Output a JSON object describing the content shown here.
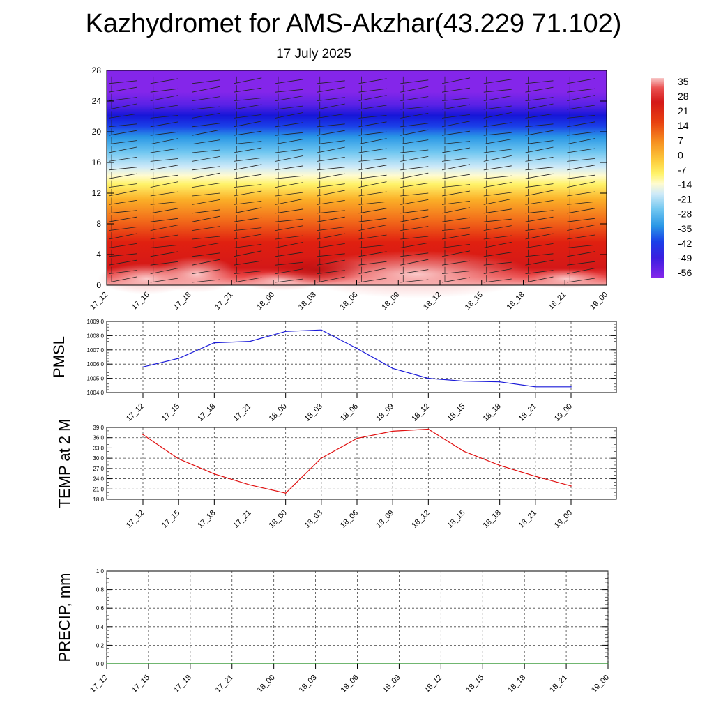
{
  "header": {
    "title": "Kazhydromet for AMS-Akzhar(43.229 71.102)",
    "subtitle": "17 July 2025"
  },
  "chart_data": [
    {
      "id": "cross_section",
      "type": "heatmap",
      "description_type": "filled contour (temperature vs height) with wind barbs",
      "x_tick_labels": [
        "17_12",
        "17_15",
        "17_18",
        "17_21",
        "18_00",
        "18_03",
        "18_06",
        "18_09",
        "18_12",
        "18_15",
        "18_18",
        "18_21",
        "19_00"
      ],
      "y_ticks": [
        0,
        4,
        8,
        12,
        16,
        20,
        24,
        28
      ],
      "ylim": [
        0,
        28
      ],
      "colorbar_labels": [
        "35",
        "28",
        "21",
        "14",
        "7",
        "0",
        "-7",
        "-14",
        "-21",
        "-28",
        "-35",
        "-42",
        "-49",
        "-56"
      ],
      "colorbar_range": [
        -60,
        38
      ],
      "colors": {
        "hot": "#f7b0b0",
        "red": "#d81818",
        "orange": "#f68a1a",
        "yellow": "#fff36a",
        "pale_blue": "#cfeaf8",
        "cyan_blue": "#2aa6e8",
        "blue": "#1520e6",
        "purple": "#8426ea"
      }
    },
    {
      "id": "pmsl",
      "type": "line",
      "ylabel": "PMSL",
      "categories": [
        "17_12",
        "17_15",
        "17_18",
        "17_21",
        "18_00",
        "18_03",
        "18_06",
        "18_09",
        "18_12",
        "18_15",
        "18_18",
        "18_21",
        "19_00"
      ],
      "values": [
        1005.8,
        1006.4,
        1007.5,
        1007.6,
        1008.3,
        1008.4,
        1007.1,
        1005.7,
        1005.0,
        1004.8,
        1004.75,
        1004.4,
        1004.4
      ],
      "ylim": [
        1004.0,
        1009.0
      ],
      "y_ticks": [
        "1004.0",
        "1005.0",
        "1006.0",
        "1007.0",
        "1008.0",
        "1009.0"
      ],
      "grid": true,
      "line_color": "#1a1ad8"
    },
    {
      "id": "temp2m",
      "type": "line",
      "ylabel": "TEMP at 2 M",
      "categories": [
        "17_12",
        "17_15",
        "17_18",
        "17_21",
        "18_00",
        "18_03",
        "18_06",
        "18_09",
        "18_12",
        "18_15",
        "18_18",
        "18_21",
        "19_00"
      ],
      "values": [
        36.9,
        29.8,
        25.4,
        22.2,
        19.8,
        30.0,
        35.8,
        37.9,
        38.5,
        32.0,
        27.9,
        24.7,
        21.9
      ],
      "ylim": [
        18.0,
        39.0
      ],
      "y_ticks": [
        "18.0",
        "21.0",
        "24.0",
        "27.0",
        "30.0",
        "33.0",
        "36.0",
        "39.0"
      ],
      "grid": true,
      "line_color": "#e01010"
    },
    {
      "id": "precip",
      "type": "line",
      "ylabel": "PRECIP, mm",
      "categories": [
        "17_12",
        "17_15",
        "17_18",
        "17_21",
        "18_00",
        "18_03",
        "18_06",
        "18_09",
        "18_12",
        "18_15",
        "18_18",
        "18_21",
        "19_00"
      ],
      "values": [
        0,
        0,
        0,
        0,
        0,
        0,
        0,
        0,
        0,
        0,
        0,
        0,
        0
      ],
      "ylim": [
        0.0,
        1.0
      ],
      "y_ticks": [
        "0.0",
        "0.2",
        "0.4",
        "0.6",
        "0.8",
        "1.0"
      ],
      "grid": true,
      "line_color": "#1a8a1a"
    }
  ]
}
